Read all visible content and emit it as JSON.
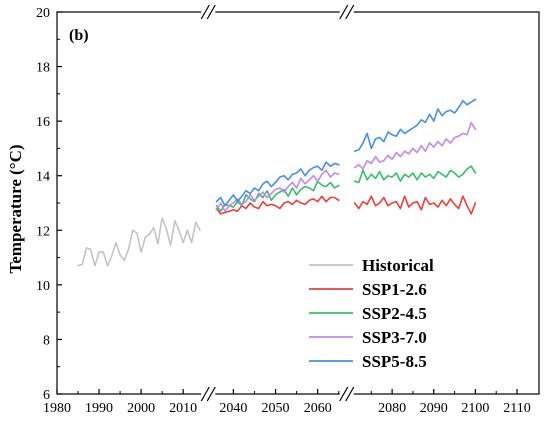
{
  "chart_data": {
    "type": "line",
    "panel_label": "(b)",
    "xlabel": "",
    "ylabel": "Temperature (°C)",
    "ylim": [
      6,
      20
    ],
    "y_ticks": [
      6,
      8,
      10,
      12,
      14,
      16,
      18,
      20
    ],
    "x_ticks": [
      1980,
      1990,
      2000,
      2010,
      2040,
      2050,
      2060,
      2080,
      2090,
      2100,
      2110
    ],
    "x_segments": [
      {
        "range": [
          1980,
          2015
        ],
        "ticks": [
          1980,
          1990,
          2000,
          2010
        ]
      },
      {
        "range": [
          2035,
          2066
        ],
        "ticks": [
          2040,
          2050,
          2060
        ]
      },
      {
        "range": [
          2070,
          2110
        ],
        "ticks": [
          2080,
          2090,
          2100,
          2110
        ]
      }
    ],
    "axis_breaks": [
      2015,
      2066
    ],
    "legend_position": "bottom-right",
    "series": [
      {
        "name": "Historical",
        "color": "#c4c4c4",
        "x": [
          1985,
          1986,
          1987,
          1988,
          1989,
          1990,
          1991,
          1992,
          1993,
          1994,
          1995,
          1996,
          1997,
          1998,
          1999,
          2000,
          2001,
          2002,
          2003,
          2004,
          2005,
          2006,
          2007,
          2008,
          2009,
          2010,
          2011,
          2012,
          2013,
          2014
        ],
        "values": [
          10.7,
          10.75,
          11.35,
          11.3,
          10.7,
          11.2,
          11.2,
          10.7,
          11.05,
          11.55,
          11.1,
          10.9,
          11.3,
          12.0,
          11.9,
          11.2,
          11.75,
          11.85,
          12.1,
          11.5,
          12.45,
          12.05,
          11.45,
          12.35,
          12.0,
          11.55,
          12.0,
          11.55,
          12.3,
          12.0
        ]
      },
      {
        "name": "SSP1-2.6",
        "color": "#e8413b",
        "x": [
          2036,
          2037,
          2038,
          2039,
          2040,
          2041,
          2042,
          2043,
          2044,
          2045,
          2046,
          2047,
          2048,
          2049,
          2050,
          2051,
          2052,
          2053,
          2054,
          2055,
          2056,
          2057,
          2058,
          2059,
          2060,
          2061,
          2062,
          2063,
          2064,
          2065,
          2071,
          2072,
          2073,
          2074,
          2075,
          2076,
          2077,
          2078,
          2079,
          2080,
          2081,
          2082,
          2083,
          2084,
          2085,
          2086,
          2087,
          2088,
          2089,
          2090,
          2091,
          2092,
          2093,
          2094,
          2095,
          2096,
          2097,
          2098,
          2099,
          2100
        ],
        "values": [
          12.8,
          12.6,
          12.65,
          12.7,
          12.75,
          12.7,
          12.9,
          12.8,
          13.0,
          12.85,
          12.8,
          13.05,
          12.9,
          12.95,
          12.9,
          12.8,
          13.0,
          13.05,
          12.95,
          13.1,
          13.0,
          12.95,
          13.1,
          13.15,
          13.05,
          13.25,
          13.05,
          13.2,
          13.2,
          13.1,
          13.0,
          12.8,
          13.05,
          12.95,
          13.25,
          12.9,
          13.0,
          13.2,
          12.9,
          13.0,
          13.05,
          12.8,
          13.25,
          12.85,
          13.0,
          13.05,
          12.75,
          13.2,
          12.95,
          13.0,
          12.85,
          13.1,
          12.9,
          13.15,
          12.95,
          12.8,
          13.25,
          12.9,
          12.6,
          13.0
        ]
      },
      {
        "name": "SSP2-4.5",
        "color": "#3cbc6c",
        "x": [
          2036,
          2037,
          2038,
          2039,
          2040,
          2041,
          2042,
          2043,
          2044,
          2045,
          2046,
          2047,
          2048,
          2049,
          2050,
          2051,
          2052,
          2053,
          2054,
          2055,
          2056,
          2057,
          2058,
          2059,
          2060,
          2061,
          2062,
          2063,
          2064,
          2065,
          2071,
          2072,
          2073,
          2074,
          2075,
          2076,
          2077,
          2078,
          2079,
          2080,
          2081,
          2082,
          2083,
          2084,
          2085,
          2086,
          2087,
          2088,
          2089,
          2090,
          2091,
          2092,
          2093,
          2094,
          2095,
          2096,
          2097,
          2098,
          2099,
          2100
        ],
        "values": [
          12.9,
          12.7,
          12.95,
          12.9,
          12.85,
          13.05,
          12.9,
          13.3,
          13.15,
          13.05,
          13.35,
          13.2,
          13.45,
          13.1,
          13.3,
          13.4,
          13.5,
          13.25,
          13.55,
          13.3,
          13.5,
          13.6,
          13.55,
          13.45,
          13.8,
          13.65,
          13.6,
          13.75,
          13.55,
          13.65,
          13.8,
          13.75,
          14.2,
          13.85,
          14.05,
          13.9,
          14.15,
          13.85,
          14.0,
          13.95,
          14.1,
          13.8,
          14.05,
          13.95,
          14.1,
          13.85,
          14.1,
          13.95,
          14.05,
          13.9,
          14.15,
          14.05,
          13.95,
          14.2,
          14.1,
          13.95,
          14.05,
          14.25,
          14.35,
          14.1
        ]
      },
      {
        "name": "SSP3-7.0",
        "color": "#c38ae6",
        "x": [
          2036,
          2037,
          2038,
          2039,
          2040,
          2041,
          2042,
          2043,
          2044,
          2045,
          2046,
          2047,
          2048,
          2049,
          2050,
          2051,
          2052,
          2053,
          2054,
          2055,
          2056,
          2057,
          2058,
          2059,
          2060,
          2061,
          2062,
          2063,
          2064,
          2065,
          2071,
          2072,
          2073,
          2074,
          2075,
          2076,
          2077,
          2078,
          2079,
          2080,
          2081,
          2082,
          2083,
          2084,
          2085,
          2086,
          2087,
          2088,
          2089,
          2090,
          2091,
          2092,
          2093,
          2094,
          2095,
          2096,
          2097,
          2098,
          2099,
          2100
        ],
        "values": [
          12.75,
          13.0,
          12.7,
          12.9,
          13.0,
          13.15,
          12.95,
          13.05,
          13.3,
          13.1,
          13.25,
          13.4,
          13.2,
          13.35,
          13.5,
          13.55,
          13.4,
          13.6,
          13.75,
          13.55,
          13.9,
          13.7,
          13.85,
          14.0,
          13.8,
          14.05,
          14.2,
          13.95,
          14.1,
          14.05,
          14.3,
          14.4,
          14.25,
          14.55,
          14.45,
          14.7,
          14.5,
          14.55,
          14.75,
          14.6,
          14.85,
          14.7,
          14.9,
          14.8,
          15.0,
          14.85,
          15.1,
          14.9,
          15.2,
          15.05,
          15.25,
          15.1,
          15.35,
          15.2,
          15.4,
          15.45,
          15.55,
          15.5,
          15.95,
          15.7
        ]
      },
      {
        "name": "SSP5-8.5",
        "color": "#4a8fe0",
        "x": [
          2036,
          2037,
          2038,
          2039,
          2040,
          2041,
          2042,
          2043,
          2044,
          2045,
          2046,
          2047,
          2048,
          2049,
          2050,
          2051,
          2052,
          2053,
          2054,
          2055,
          2056,
          2057,
          2058,
          2059,
          2060,
          2061,
          2062,
          2063,
          2064,
          2065,
          2071,
          2072,
          2073,
          2074,
          2075,
          2076,
          2077,
          2078,
          2079,
          2080,
          2081,
          2082,
          2083,
          2084,
          2085,
          2086,
          2087,
          2088,
          2089,
          2090,
          2091,
          2092,
          2093,
          2094,
          2095,
          2096,
          2097,
          2098,
          2099,
          2100
        ],
        "values": [
          13.05,
          13.2,
          12.9,
          13.1,
          13.3,
          13.05,
          13.25,
          13.45,
          13.35,
          13.55,
          13.45,
          13.7,
          13.8,
          13.6,
          13.75,
          13.95,
          14.0,
          13.85,
          14.05,
          14.1,
          14.25,
          14.0,
          14.2,
          14.3,
          14.35,
          14.2,
          14.5,
          14.35,
          14.45,
          14.4,
          14.9,
          14.95,
          15.2,
          15.55,
          15.0,
          15.35,
          15.4,
          15.25,
          15.6,
          15.5,
          15.45,
          15.7,
          15.55,
          15.65,
          15.75,
          15.85,
          16.05,
          15.95,
          16.25,
          16.0,
          16.45,
          16.2,
          16.35,
          16.4,
          16.3,
          16.5,
          16.75,
          16.6,
          16.7,
          16.8
        ]
      }
    ]
  }
}
